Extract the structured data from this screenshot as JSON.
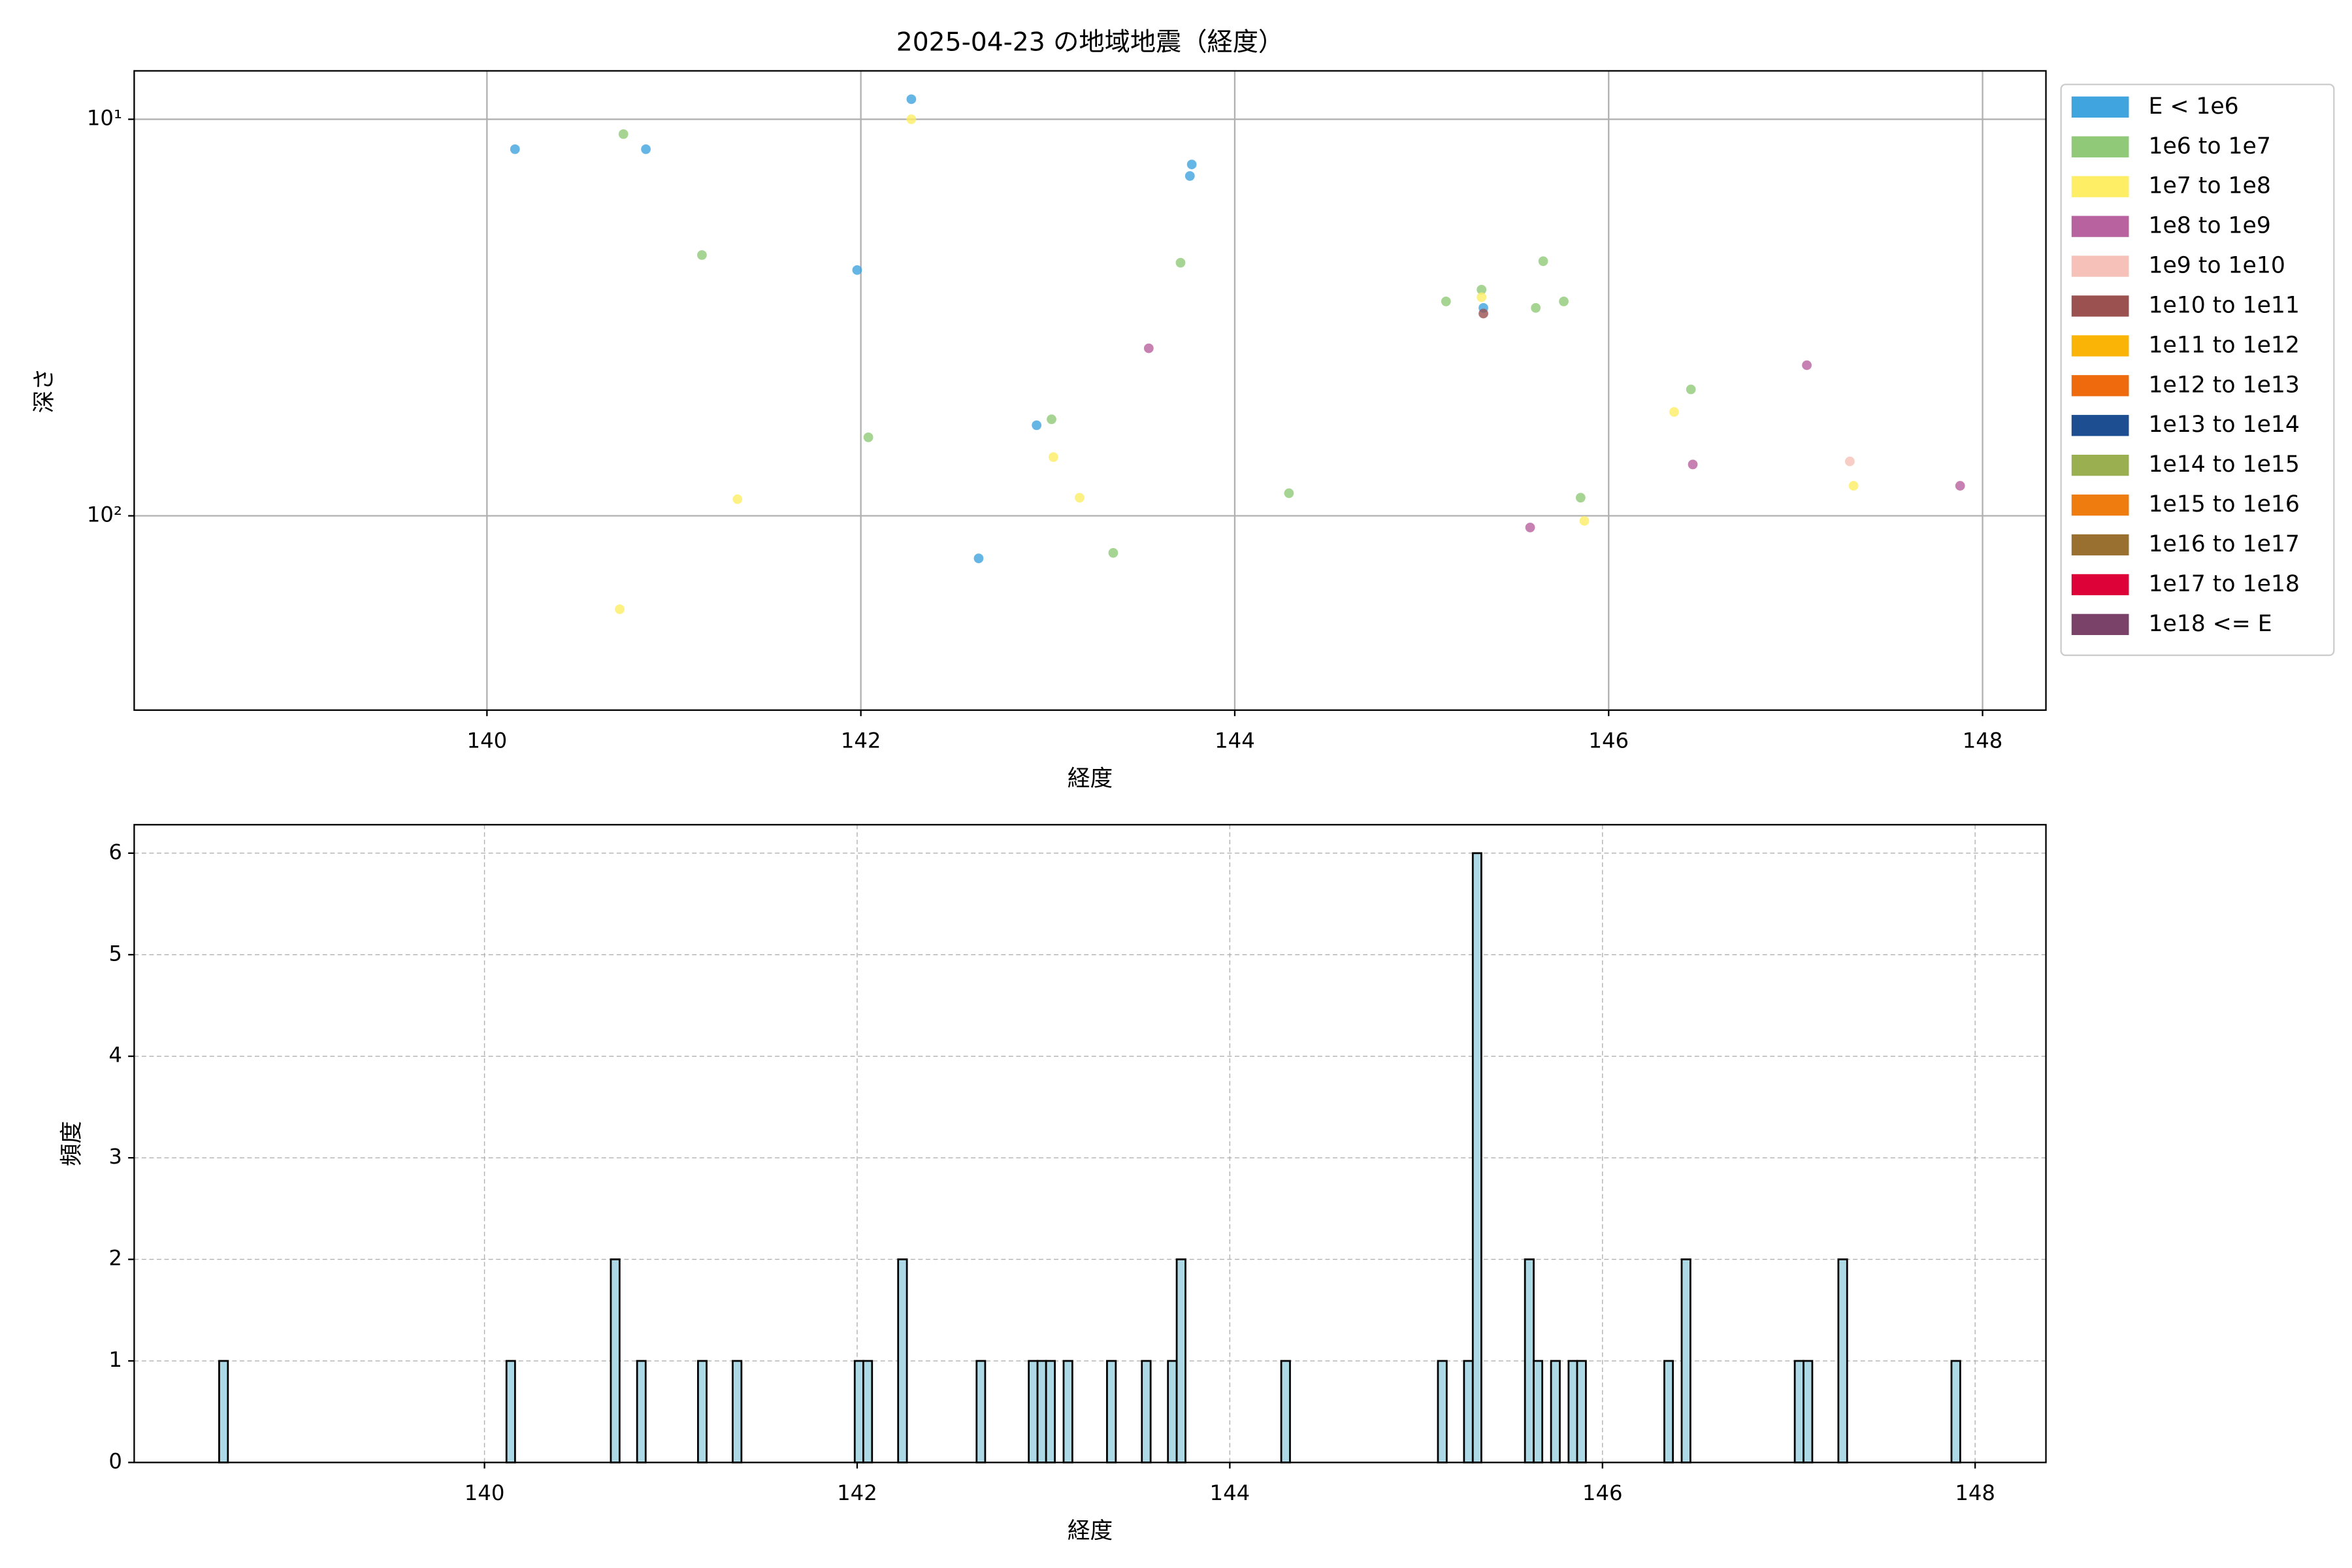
{
  "chart_data": [
    {
      "type": "scatter",
      "title": "2025-04-23 の地域地震（経度）",
      "xlabel": "経度",
      "ylabel": "深さ",
      "log_y": true,
      "grid": true,
      "grid_linestyle": "solid",
      "legend": "outside-right",
      "xlim": [
        138.113,
        148.339
      ],
      "xticks": [
        140,
        142,
        144,
        146,
        148
      ],
      "ylim": [
        309,
        7.55
      ],
      "yticks": [
        {
          "value": 10,
          "label": "10¹"
        },
        {
          "value": 100,
          "label": "10²"
        }
      ],
      "series": [
        {
          "name": "E < 1e6",
          "color": "#40a4df",
          "x": [
            140.15,
            140.85,
            141.98,
            142.27,
            142.63,
            142.94,
            143.76,
            143.77,
            145.33
          ],
          "values": [
            11.9,
            11.9,
            24.0,
            8.9,
            128,
            59.1,
            13.9,
            13.0,
            29.9
          ]
        },
        {
          "name": "1e6 to 1e7",
          "color": "#90c978",
          "x": [
            140.73,
            141.15,
            142.04,
            143.02,
            143.35,
            143.71,
            144.29,
            145.13,
            145.32,
            145.61,
            145.65,
            145.76,
            145.85,
            146.44
          ],
          "values": [
            10.9,
            22.0,
            63.4,
            57.1,
            124,
            23.0,
            87.7,
            28.8,
            26.9,
            29.9,
            22.8,
            28.8,
            90.0,
            48.0
          ]
        },
        {
          "name": "1e7 to 1e8",
          "color": "#fdee65",
          "x": [
            142.27,
            141.34,
            140.71,
            143.03,
            143.17,
            145.32,
            145.87,
            146.35,
            147.31
          ],
          "values": [
            10.0,
            90.8,
            172,
            71.1,
            90.0,
            28.1,
            103,
            54.7,
            84.0
          ]
        },
        {
          "name": "1e8 to 1e9",
          "color": "#b8629f",
          "x": [
            143.54,
            145.58,
            146.45,
            147.06,
            147.88
          ],
          "values": [
            37.8,
            107,
            74.2,
            41.7,
            84.0
          ]
        },
        {
          "name": "1e9 to 1e10",
          "color": "#f5c1b8",
          "x": [
            147.29
          ],
          "values": [
            72.9
          ]
        },
        {
          "name": "1e10 to 1e11",
          "color": "#9a5150",
          "x": [
            145.33
          ],
          "values": [
            30.9
          ]
        },
        {
          "name": "1e11 to 1e12",
          "color": "#f9b406",
          "x": [],
          "values": []
        },
        {
          "name": "1e12 to 1e13",
          "color": "#ee6a0c",
          "x": [],
          "values": []
        },
        {
          "name": "1e13 to 1e14",
          "color": "#1e4e92",
          "x": [],
          "values": []
        },
        {
          "name": "1e14 to 1e15",
          "color": "#9aaf4f",
          "x": [],
          "values": []
        },
        {
          "name": "1e15 to 1e16",
          "color": "#ee7c0e",
          "x": [],
          "values": []
        },
        {
          "name": "1e16 to 1e17",
          "color": "#99702f",
          "x": [],
          "values": []
        },
        {
          "name": "1e17 to 1e18",
          "color": "#dd0238",
          "x": [],
          "values": []
        },
        {
          "name": "1e18 <= E",
          "color": "#7a4169",
          "x": [],
          "values": []
        }
      ]
    },
    {
      "type": "histogram",
      "xlabel": "経度",
      "ylabel": "頻度",
      "color": "#add8e6",
      "edgecolor": "#000000",
      "grid": true,
      "grid_linestyle": "dashed",
      "xlim": [
        138.12,
        148.38
      ],
      "xticks": [
        140,
        142,
        144,
        146,
        148
      ],
      "ylim": [
        0,
        6.28
      ],
      "yticks": [
        0,
        1,
        2,
        3,
        4,
        5,
        6
      ],
      "bins": [
        138.576,
        138.623,
        140.118,
        140.164,
        140.678,
        140.725,
        140.819,
        140.865,
        141.146,
        141.192,
        141.332,
        141.379,
        141.987,
        142.033,
        142.08,
        142.22,
        142.267,
        142.641,
        142.687,
        142.921,
        142.968,
        143.014,
        143.061,
        143.108,
        143.155,
        143.341,
        143.388,
        143.528,
        143.575,
        143.668,
        143.715,
        143.762,
        144.276,
        144.323,
        145.117,
        145.164,
        145.257,
        145.304,
        145.35,
        145.584,
        145.631,
        145.677,
        145.724,
        145.771,
        145.818,
        145.864,
        145.911,
        146.332,
        146.378,
        146.425,
        146.472,
        147.032,
        147.079,
        147.126,
        147.266,
        147.313,
        147.873,
        147.92
      ],
      "values": [
        1,
        0,
        1,
        0,
        2,
        0,
        1,
        0,
        1,
        0,
        1,
        0,
        1,
        1,
        0,
        2,
        0,
        1,
        0,
        1,
        1,
        1,
        0,
        1,
        0,
        1,
        0,
        1,
        0,
        1,
        2,
        0,
        1,
        0,
        1,
        0,
        1,
        6,
        0,
        2,
        1,
        0,
        1,
        0,
        1,
        1,
        0,
        1,
        0,
        2,
        0,
        1,
        1,
        0,
        2,
        0,
        1
      ]
    }
  ]
}
